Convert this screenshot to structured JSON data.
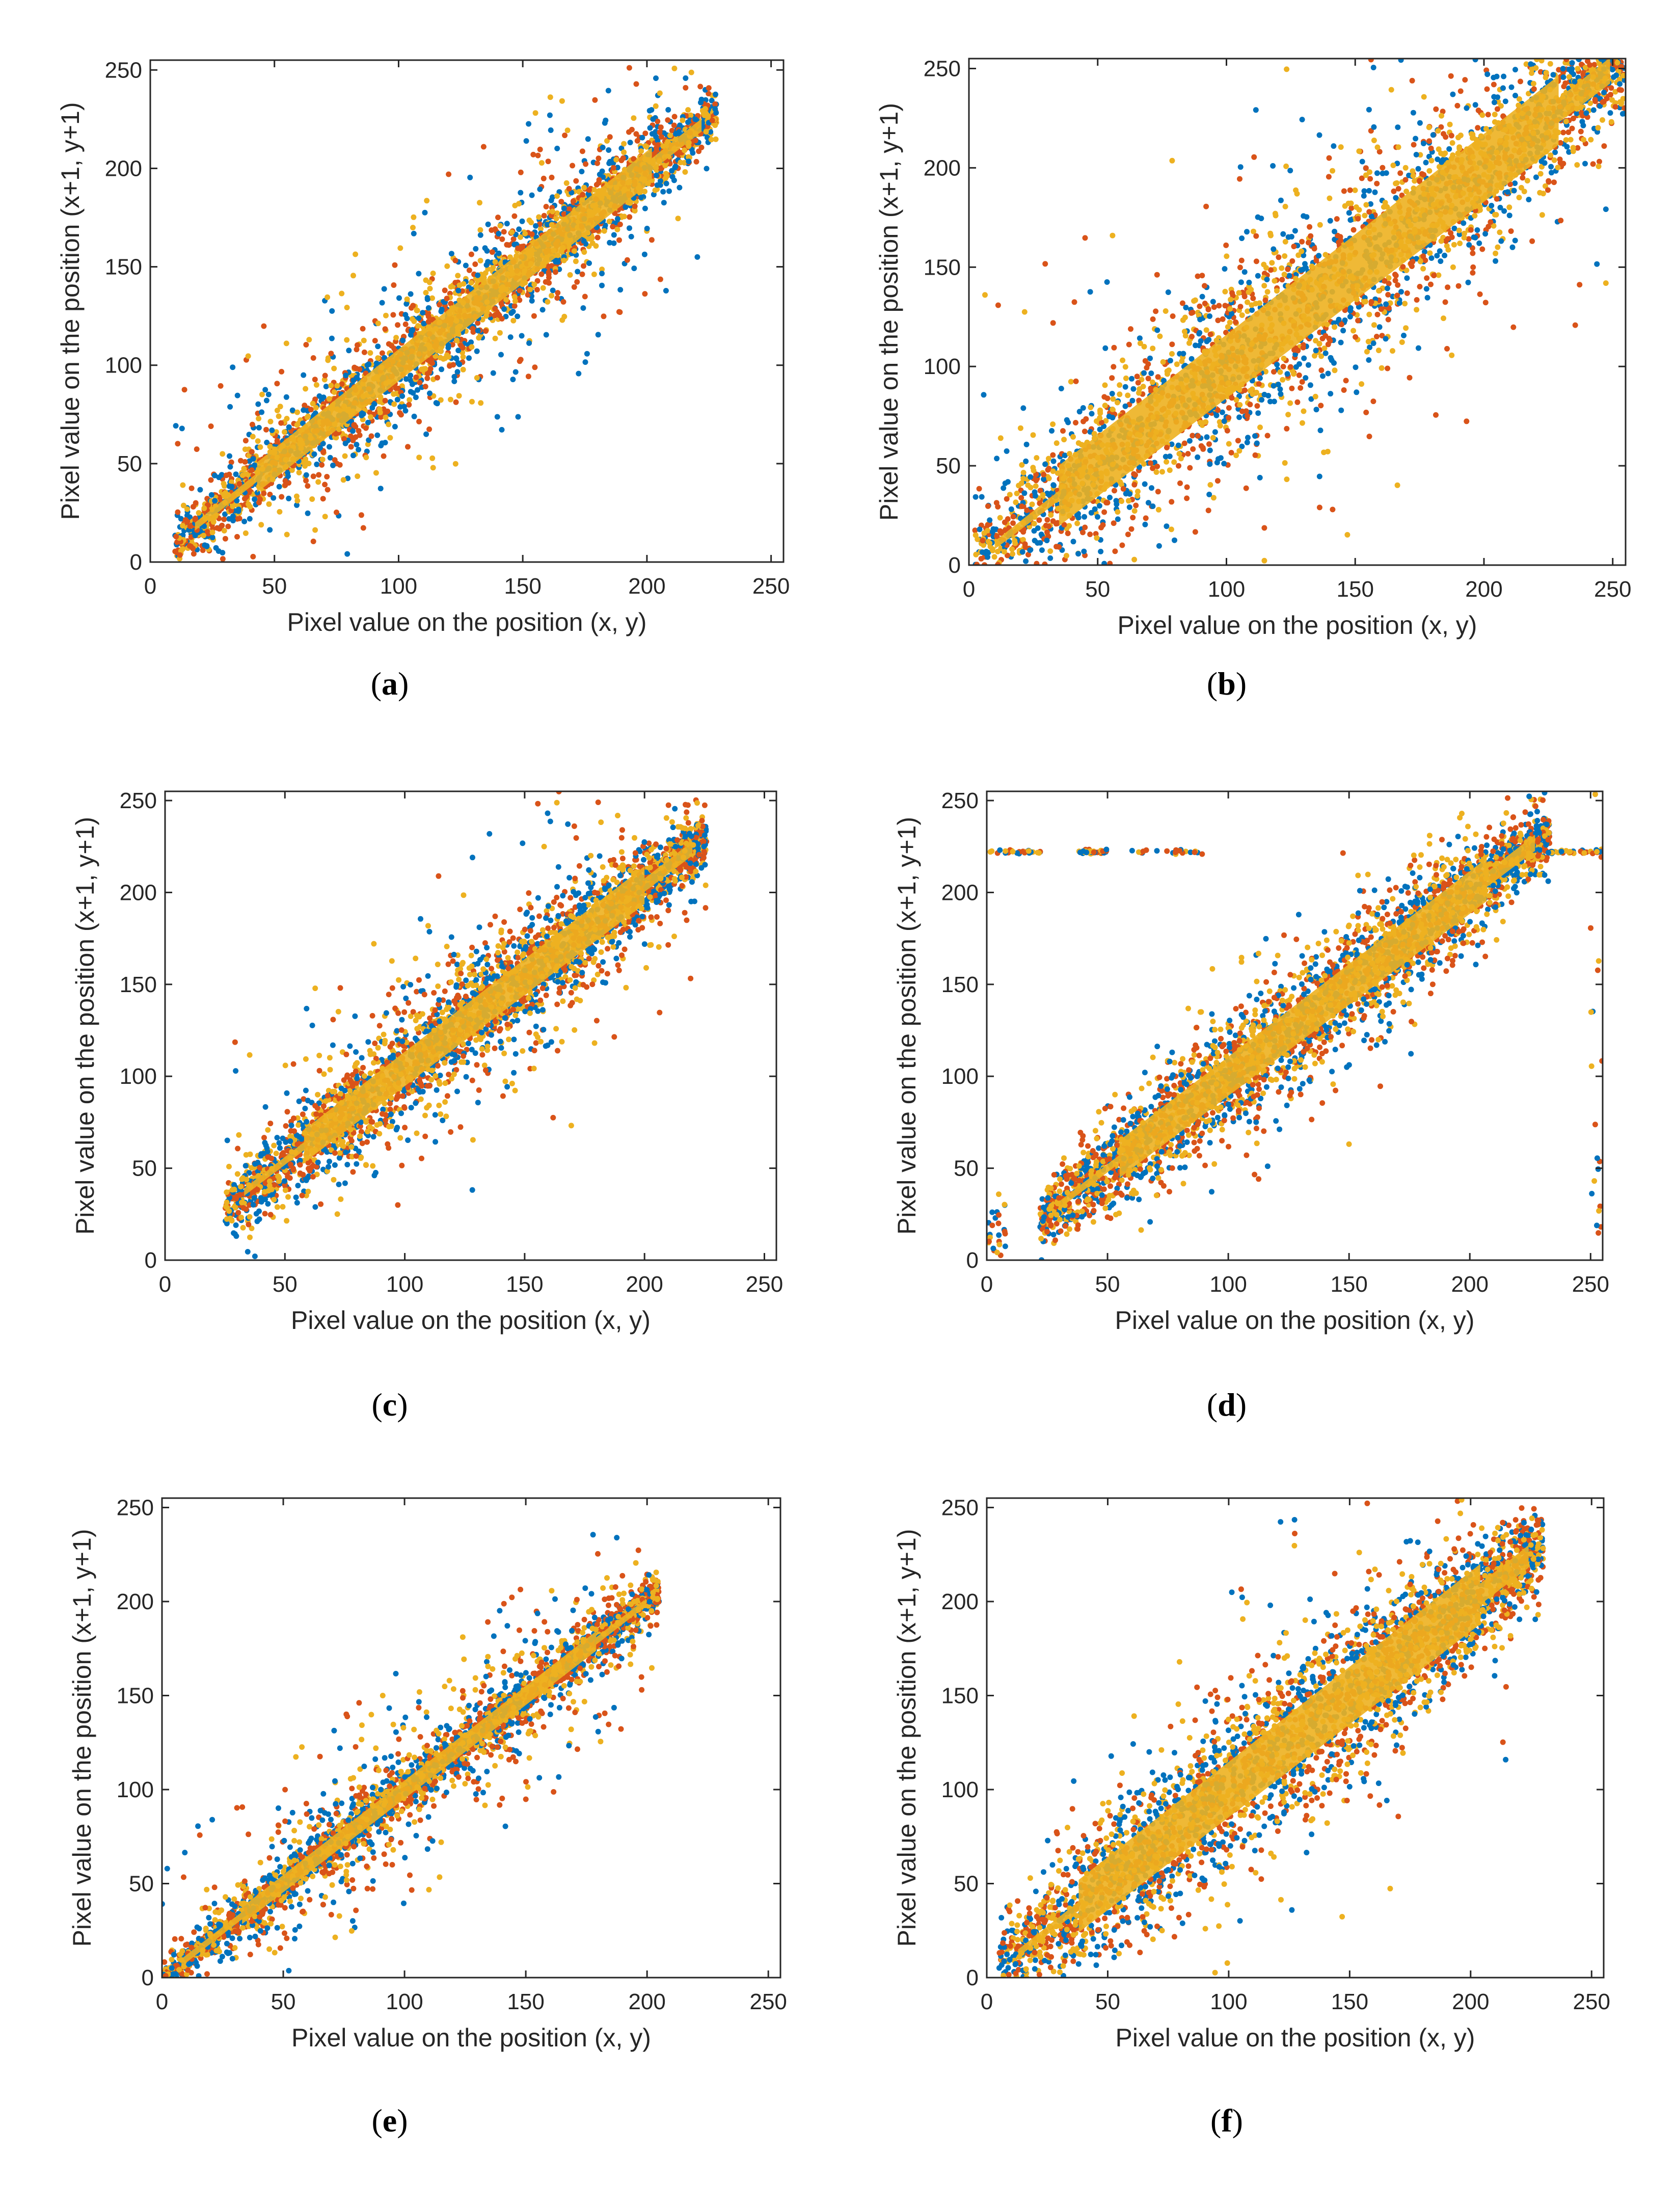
{
  "figure": {
    "colors": {
      "blue": "#0072BD",
      "red": "#D95319",
      "yellow": "#EDB120",
      "axis": "#262626"
    },
    "panels": [
      {
        "id": "a",
        "caption": "a"
      },
      {
        "id": "b",
        "caption": "b"
      },
      {
        "id": "c",
        "caption": "c"
      },
      {
        "id": "d",
        "caption": "d"
      },
      {
        "id": "e",
        "caption": "e"
      },
      {
        "id": "f",
        "caption": "f"
      }
    ]
  },
  "chart_data": [
    {
      "panel": "a",
      "type": "scatter",
      "xlabel": "Pixel value on the position (x, y)",
      "ylabel": "Pixel value on the position (x+1, y+1)",
      "xlim": [
        0,
        255
      ],
      "ylim": [
        0,
        255
      ],
      "xticks": [
        0,
        50,
        100,
        150,
        200,
        250
      ],
      "yticks": [
        0,
        50,
        100,
        150,
        200,
        250
      ],
      "grid": false,
      "series": [
        {
          "color": "blue"
        },
        {
          "color": "red"
        },
        {
          "color": "yellow"
        }
      ],
      "distribution": {
        "x_range": [
          10,
          228
        ],
        "spread_core": 10,
        "spread_wide": 35,
        "outlier_fraction": 0.07,
        "offset": 0
      }
    },
    {
      "panel": "b",
      "type": "scatter",
      "xlabel": "Pixel value on the position (x, y)",
      "ylabel": "Pixel value on the position (x+1, y+1)",
      "xlim": [
        0,
        255
      ],
      "ylim": [
        0,
        255
      ],
      "xticks": [
        0,
        50,
        100,
        150,
        200,
        250
      ],
      "yticks": [
        0,
        50,
        100,
        150,
        200,
        250
      ],
      "grid": false,
      "series": [
        {
          "color": "blue"
        },
        {
          "color": "red"
        },
        {
          "color": "yellow"
        }
      ],
      "distribution": {
        "x_range": [
          2,
          255
        ],
        "spread_core": 22,
        "spread_wide": 60,
        "outlier_fraction": 0.05,
        "offset": 0
      }
    },
    {
      "panel": "c",
      "type": "scatter",
      "xlabel": "Pixel value on the position (x, y)",
      "ylabel": "Pixel value on the position (x+1, y+1)",
      "xlim": [
        0,
        255
      ],
      "ylim": [
        0,
        255
      ],
      "xticks": [
        0,
        50,
        100,
        150,
        200,
        250
      ],
      "yticks": [
        0,
        50,
        100,
        150,
        200,
        250
      ],
      "grid": false,
      "series": [
        {
          "color": "blue"
        },
        {
          "color": "red"
        },
        {
          "color": "yellow"
        }
      ],
      "distribution": {
        "x_range": [
          25,
          226
        ],
        "spread_core": 12,
        "spread_wide": 45,
        "outlier_fraction": 0.03,
        "offset": 4
      }
    },
    {
      "panel": "d",
      "type": "scatter",
      "xlabel": "Pixel value on the position (x, y)",
      "ylabel": "Pixel value on the position (x+1, y+1)",
      "xlim": [
        0,
        255
      ],
      "ylim": [
        0,
        255
      ],
      "xticks": [
        0,
        50,
        100,
        150,
        200,
        250
      ],
      "yticks": [
        0,
        50,
        100,
        150,
        200,
        250
      ],
      "grid": false,
      "series": [
        {
          "color": "blue"
        },
        {
          "color": "red"
        },
        {
          "color": "yellow"
        }
      ],
      "distribution": {
        "x_range": [
          22,
          233
        ],
        "spread_core": 14,
        "spread_wide": 45,
        "outlier_fraction": 0.03,
        "offset": 0,
        "horizontal_line_y": 222,
        "edge_points": true
      }
    },
    {
      "panel": "e",
      "type": "scatter",
      "xlabel": "Pixel value on the position (x, y)",
      "ylabel": "Pixel value on the position (x+1, y+1)",
      "xlim": [
        0,
        255
      ],
      "ylim": [
        0,
        255
      ],
      "xticks": [
        0,
        50,
        100,
        150,
        200,
        250
      ],
      "yticks": [
        0,
        50,
        100,
        150,
        200,
        250
      ],
      "grid": false,
      "series": [
        {
          "color": "blue"
        },
        {
          "color": "red"
        },
        {
          "color": "yellow"
        }
      ],
      "distribution": {
        "x_range": [
          0,
          205
        ],
        "spread_core": 5,
        "spread_wide": 30,
        "outlier_fraction": 0.05,
        "offset": 0
      }
    },
    {
      "panel": "f",
      "type": "scatter",
      "xlabel": "Pixel value on the position (x, y)",
      "ylabel": "Pixel value on the position (x+1, y+1)",
      "xlim": [
        0,
        255
      ],
      "ylim": [
        0,
        255
      ],
      "xticks": [
        0,
        50,
        100,
        150,
        200,
        250
      ],
      "yticks": [
        0,
        50,
        100,
        150,
        200,
        250
      ],
      "grid": false,
      "series": [
        {
          "color": "blue"
        },
        {
          "color": "red"
        },
        {
          "color": "yellow"
        }
      ],
      "distribution": {
        "x_range": [
          5,
          230
        ],
        "spread_core": 20,
        "spread_wide": 55,
        "outlier_fraction": 0.02,
        "offset": 0
      }
    }
  ]
}
